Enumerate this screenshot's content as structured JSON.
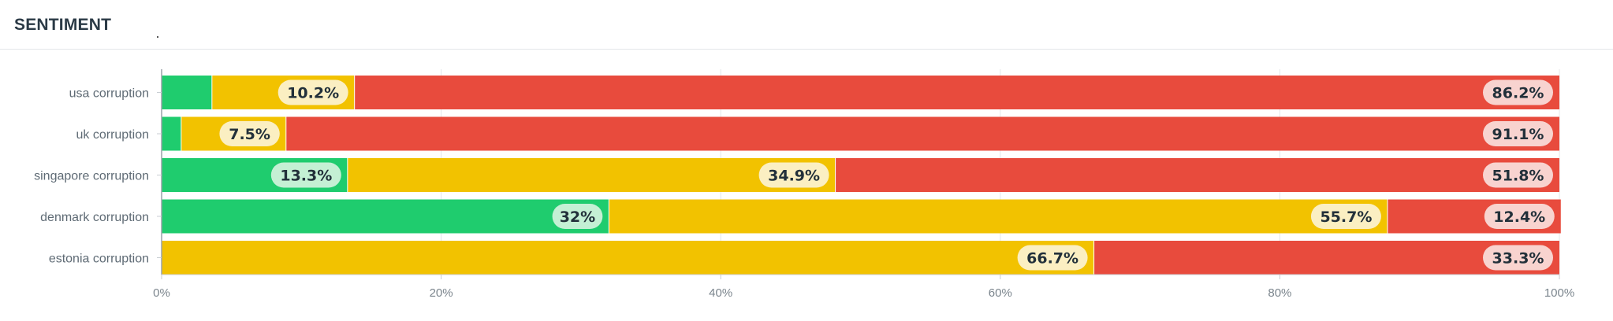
{
  "header": {
    "title": "SENTIMENT"
  },
  "chart_data": {
    "type": "bar",
    "orientation": "horizontal",
    "stacked": true,
    "categories": [
      "usa corruption",
      "uk corruption",
      "singapore corruption",
      "denmark corruption",
      "estonia corruption"
    ],
    "series": [
      {
        "color": "#1fcc6e",
        "pill_color": "#c4f0d4",
        "values": [
          3.6,
          1.4,
          13.3,
          32,
          0
        ]
      },
      {
        "color": "#f2c200",
        "pill_color": "#fbefc2",
        "values": [
          10.2,
          7.5,
          34.9,
          55.7,
          66.7
        ]
      },
      {
        "color": "#e84b3d",
        "pill_color": "#f8d3cf",
        "values": [
          86.2,
          91.1,
          51.8,
          12.4,
          33.3
        ]
      }
    ],
    "value_labels": [
      [
        "",
        "10.2%",
        "86.2%"
      ],
      [
        "",
        "7.5%",
        "91.1%"
      ],
      [
        "13.3%",
        "34.9%",
        "51.8%"
      ],
      [
        "32%",
        "55.7%",
        "12.4%"
      ],
      [
        "",
        "66.7%",
        "33.3%"
      ]
    ],
    "x_ticks": [
      0,
      20,
      40,
      60,
      80,
      100
    ],
    "x_tick_labels": [
      "0%",
      "20%",
      "40%",
      "60%",
      "80%",
      "100%"
    ],
    "xlim": [
      0,
      100
    ],
    "grid": true
  }
}
